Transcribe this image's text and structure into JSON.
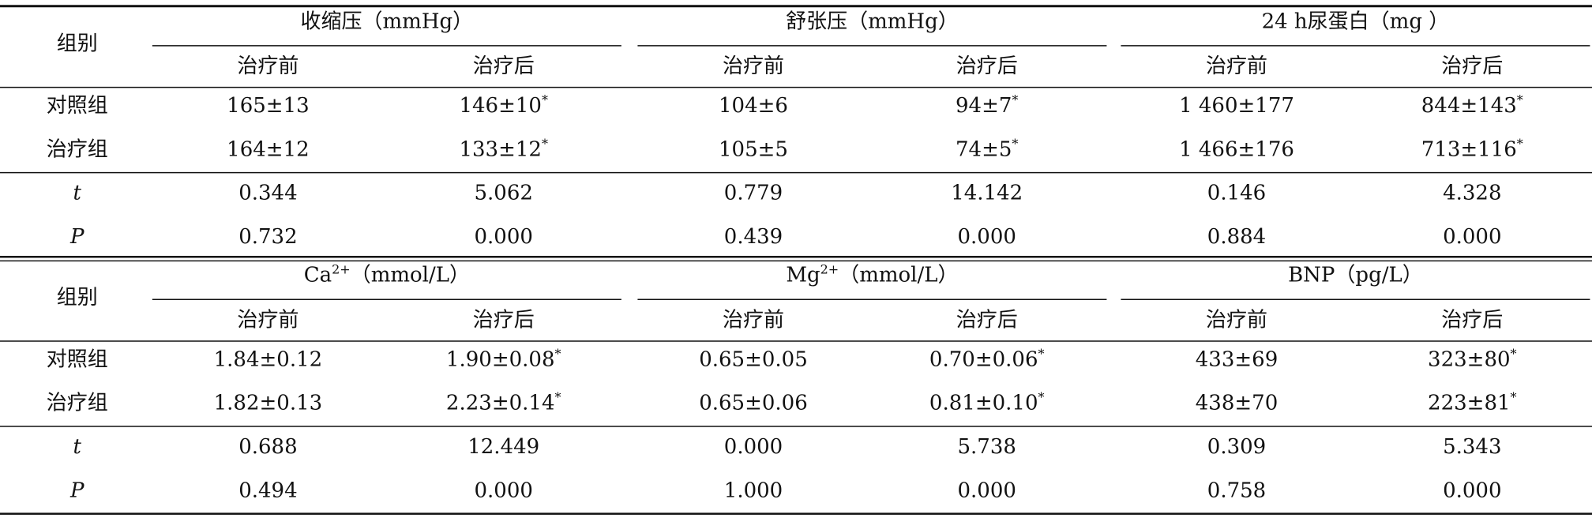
{
  "tables": [
    {
      "row_header": "组别",
      "groups": [
        {
          "name": "收缩压（mmHg）",
          "sub": [
            "治疗前",
            "治疗后"
          ]
        },
        {
          "name": "舒张压（mmHg）",
          "sub": [
            "治疗前",
            "治疗后"
          ]
        },
        {
          "name": "24 h尿蛋白（mg ）",
          "sub": [
            "治疗前",
            "治疗后"
          ]
        }
      ],
      "rows": [
        {
          "label": "对照组",
          "cells": [
            {
              "text": "165±13"
            },
            {
              "text": "146±10",
              "sup": "*"
            },
            {
              "text": "104±6"
            },
            {
              "text": "94±7",
              "sup": "*"
            },
            {
              "text": "1 460±177"
            },
            {
              "text": "844±143",
              "sup": "*"
            }
          ]
        },
        {
          "label": "治疗组",
          "cells": [
            {
              "text": "164±12"
            },
            {
              "text": "133±12",
              "sup": "*"
            },
            {
              "text": "105±5"
            },
            {
              "text": "74±5",
              "sup": "*"
            },
            {
              "text": "1 466±176"
            },
            {
              "text": "713±116",
              "sup": "*"
            }
          ]
        },
        {
          "label": "t",
          "italic": true,
          "cells": [
            {
              "text": "0.344"
            },
            {
              "text": "5.062"
            },
            {
              "text": "0.779"
            },
            {
              "text": "14.142"
            },
            {
              "text": "0.146"
            },
            {
              "text": "4.328"
            }
          ]
        },
        {
          "label": "P",
          "italic": true,
          "cells": [
            {
              "text": "0.732"
            },
            {
              "text": "0.000"
            },
            {
              "text": "0.439"
            },
            {
              "text": "0.000"
            },
            {
              "text": "0.884"
            },
            {
              "text": "0.000"
            }
          ]
        }
      ]
    },
    {
      "row_header": "组别",
      "groups": [
        {
          "name": "Ca",
          "sup": "2+",
          "unit": "（mmol/L）",
          "sub": [
            "治疗前",
            "治疗后"
          ]
        },
        {
          "name": "Mg",
          "sup": "2+",
          "unit": "（mmol/L）",
          "sub": [
            "治疗前",
            "治疗后"
          ]
        },
        {
          "name": "BNP（pg/L）",
          "sub": [
            "治疗前",
            "治疗后"
          ]
        }
      ],
      "rows": [
        {
          "label": "对照组",
          "cells": [
            {
              "text": "1.84±0.12"
            },
            {
              "text": "1.90±0.08",
              "sup": "*"
            },
            {
              "text": "0.65±0.05"
            },
            {
              "text": "0.70±0.06",
              "sup": "*"
            },
            {
              "text": "433±69"
            },
            {
              "text": "323±80",
              "sup": "*"
            }
          ]
        },
        {
          "label": "治疗组",
          "cells": [
            {
              "text": "1.82±0.13"
            },
            {
              "text": "2.23±0.14",
              "sup": "*"
            },
            {
              "text": "0.65±0.06"
            },
            {
              "text": "0.81±0.10",
              "sup": "*"
            },
            {
              "text": "438±70"
            },
            {
              "text": "223±81",
              "sup": "*"
            }
          ]
        },
        {
          "label": "t",
          "italic": true,
          "cells": [
            {
              "text": "0.688"
            },
            {
              "text": "12.449"
            },
            {
              "text": "0.000"
            },
            {
              "text": "5.738"
            },
            {
              "text": "0.309"
            },
            {
              "text": "5.343"
            }
          ]
        },
        {
          "label": "P",
          "italic": true,
          "cells": [
            {
              "text": "0.494"
            },
            {
              "text": "0.000"
            },
            {
              "text": "1.000"
            },
            {
              "text": "0.000"
            },
            {
              "text": "0.758"
            },
            {
              "text": "0.000"
            }
          ]
        }
      ]
    }
  ]
}
